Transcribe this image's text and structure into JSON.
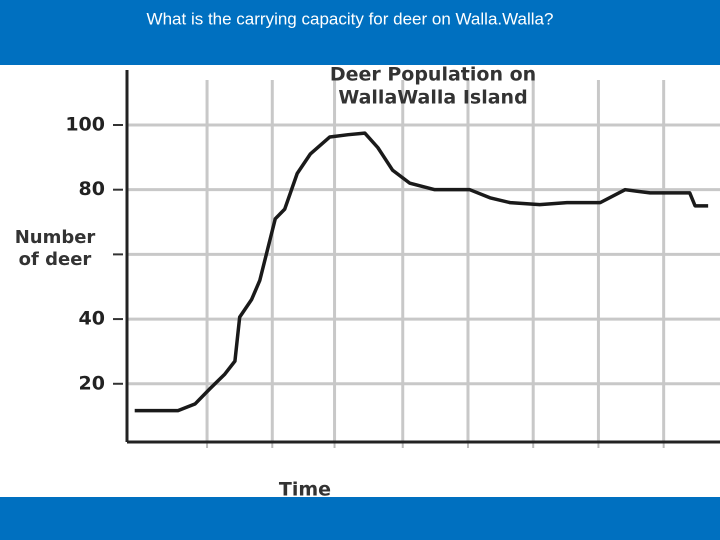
{
  "header": {
    "question": "What is the carrying capacity for deer on Walla.Walla?"
  },
  "chart_data": {
    "type": "line",
    "title": [
      "Deer Population on",
      "WallaWalla Island"
    ],
    "ylabel": [
      "Number",
      "of deer"
    ],
    "xlabel": "Time",
    "x": [
      1.3,
      8.6,
      11.5,
      14,
      16.5,
      18.2,
      19,
      21,
      22.4,
      25,
      26.6,
      28.7,
      30.9,
      34.2,
      37.3,
      40.1,
      42.3,
      44.8,
      47.7,
      51.9,
      57.8,
      61.2,
      64.6,
      69.6,
      74.2,
      79.8,
      84,
      88.2,
      94.9,
      95.8,
      98
    ],
    "series": [
      {
        "color": "#1a1a1a",
        "values": [
          11.7,
          11.7,
          13.8,
          18.5,
          23,
          27,
          40.6,
          46,
          52,
          71,
          74,
          85,
          91,
          96.3,
          97,
          97.5,
          93,
          86,
          82,
          80,
          80,
          77.5,
          76,
          75.4,
          76,
          76,
          80,
          79,
          79,
          75,
          75
        ]
      }
    ],
    "xlim": [
      0,
      100
    ],
    "xticks": [
      13.5,
      24.5,
      35,
      46.5,
      57.5,
      68.5,
      79.5,
      90.5
    ],
    "ylim": [
      2,
      117
    ],
    "yticks": [
      20,
      40,
      {
        "value": 60,
        "label": null
      },
      80,
      100
    ],
    "grid": true
  }
}
